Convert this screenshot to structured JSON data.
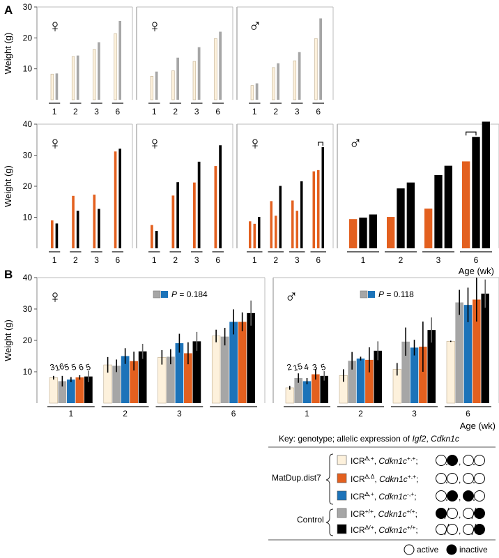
{
  "panel_labels": {
    "a": "A",
    "b": "B"
  },
  "colors": {
    "cream": "#fdf1dc",
    "grey": "#a6a6a6",
    "orange": "#e3601f",
    "blue": "#1c73b9",
    "black": "#000000"
  },
  "chart_data": [
    {
      "id": "a1",
      "type": "bar",
      "symbol": "♀",
      "ylabel": "Weight (g)",
      "ylim": [
        0,
        30
      ],
      "yticks": [
        10,
        20,
        30
      ],
      "categories": [
        "1",
        "2",
        "3",
        "6"
      ],
      "series": [
        {
          "color": "cream",
          "values": [
            8.3,
            14.0,
            16.3,
            21.4
          ]
        },
        {
          "color": "grey",
          "values": [
            8.5,
            14.3,
            18.6,
            25.5
          ]
        }
      ]
    },
    {
      "id": "a2",
      "type": "bar",
      "symbol": "♀",
      "ylim": [
        0,
        30
      ],
      "categories": [
        "1",
        "2",
        "3",
        "6"
      ],
      "series": [
        {
          "color": "cream",
          "values": [
            7.6,
            9.4,
            12.4,
            19.8
          ]
        },
        {
          "color": "grey",
          "values": [
            9.1,
            13.6,
            17.0,
            22.0
          ]
        }
      ]
    },
    {
      "id": "a3",
      "type": "bar",
      "symbol": "♂",
      "ylim": [
        0,
        30
      ],
      "categories": [
        "1",
        "2",
        "3",
        "6"
      ],
      "series": [
        {
          "color": "cream",
          "values": [
            4.6,
            10.4,
            12.6,
            19.8
          ]
        },
        {
          "color": "grey",
          "values": [
            5.3,
            11.8,
            15.4,
            26.3
          ]
        }
      ]
    },
    {
      "id": "a4",
      "type": "bar",
      "symbol": "♀",
      "ylabel": "Weight (g)",
      "ylim": [
        0,
        40
      ],
      "yticks": [
        10,
        20,
        30,
        40
      ],
      "categories": [
        "1",
        "2",
        "3",
        "6"
      ],
      "series": [
        {
          "color": "orange",
          "values": [
            9.0,
            16.9,
            17.3,
            31.2
          ]
        },
        {
          "color": "black",
          "values": [
            8.0,
            12.1,
            12.7,
            32.1
          ]
        }
      ]
    },
    {
      "id": "a5",
      "type": "bar",
      "symbol": "♀",
      "ylim": [
        0,
        40
      ],
      "categories": [
        "1",
        "2",
        "3",
        "6"
      ],
      "series": [
        {
          "color": "orange",
          "values": [
            7.5,
            17.0,
            21.2,
            26.5
          ]
        },
        {
          "color": "black",
          "values": [
            5.6,
            21.3,
            27.9,
            33.2
          ]
        }
      ]
    },
    {
      "id": "a6",
      "type": "bar",
      "symbol": "♀",
      "ylim": [
        0,
        40
      ],
      "categories": [
        "1",
        "2",
        "3",
        "6"
      ],
      "series": [
        {
          "color": "orange",
          "values": [
            8.7,
            15.2,
            15.4,
            24.8
          ]
        },
        {
          "color": "orange",
          "values": [
            7.9,
            10.5,
            12.1,
            25.2
          ]
        },
        {
          "color": "black",
          "values": [
            10.1,
            20.1,
            21.6,
            32.6
          ]
        }
      ],
      "bracket": {
        "category": "6",
        "from_series": 1,
        "to_series": 2
      }
    },
    {
      "id": "a7",
      "type": "bar",
      "symbol": "♂",
      "ylim": [
        0,
        40
      ],
      "xlabel": "Age (wk)",
      "categories": [
        "1",
        "2",
        "3",
        "6"
      ],
      "series": [
        {
          "color": "orange",
          "values": [
            9.4,
            10.1,
            12.8,
            28.0
          ]
        },
        {
          "color": "black",
          "values": [
            9.9,
            19.3,
            23.6,
            35.9
          ]
        },
        {
          "color": "black",
          "values": [
            10.9,
            21.2,
            26.6,
            40.8
          ]
        }
      ],
      "bracket": {
        "category": "6",
        "from_series": 0,
        "to_series": 1
      }
    },
    {
      "id": "b1",
      "type": "bar",
      "symbol": "♀",
      "ylabel": "Weight (g)",
      "ylim": [
        0,
        40
      ],
      "yticks": [
        10,
        20,
        30,
        40
      ],
      "categories": [
        "1",
        "2",
        "3",
        "6"
      ],
      "p_label": "P",
      "p_value": "= 0.184",
      "n_labels": [
        "3",
        "16",
        "5",
        "5",
        "6",
        "5"
      ],
      "series": [
        {
          "color": "cream",
          "values": [
            8.1,
            12.2,
            14.6,
            21.4
          ],
          "err": [
            0.6,
            2.5,
            2.3,
            2.0
          ]
        },
        {
          "color": "grey",
          "values": [
            7.0,
            11.9,
            14.8,
            21.2
          ],
          "err": [
            1.7,
            2.0,
            2.4,
            2.8
          ]
        },
        {
          "color": "blue",
          "values": [
            7.5,
            15.0,
            19.1,
            25.9
          ],
          "err": [
            0.8,
            2.5,
            3.0,
            4.0
          ]
        },
        {
          "color": "orange",
          "values": [
            8.2,
            13.4,
            15.9,
            25.9
          ],
          "err": [
            0.7,
            3.0,
            3.5,
            3.0
          ]
        },
        {
          "color": "black",
          "values": [
            8.5,
            16.5,
            19.7,
            28.7
          ],
          "err": [
            1.8,
            2.4,
            3.0,
            4.0
          ]
        }
      ]
    },
    {
      "id": "b2",
      "type": "bar",
      "symbol": "♂",
      "ylim": [
        0,
        40
      ],
      "xlabel": "Age (wk)",
      "categories": [
        "1",
        "2",
        "3",
        "6"
      ],
      "p_label": "P",
      "p_value": "= 0.118",
      "n_labels": [
        "2",
        "15",
        "4",
        "3",
        "5"
      ],
      "series": [
        {
          "color": "cream",
          "values": [
            4.9,
            8.8,
            10.8,
            19.7
          ],
          "err": [
            0.6,
            2.0,
            2.0,
            0.2
          ]
        },
        {
          "color": "grey",
          "values": [
            8.0,
            13.5,
            19.6,
            32.1
          ],
          "err": [
            1.5,
            2.8,
            4.5,
            4.0
          ]
        },
        {
          "color": "blue",
          "values": [
            7.0,
            14.2,
            17.7,
            31.3
          ],
          "err": [
            1.0,
            0.6,
            2.5,
            5.5
          ]
        },
        {
          "color": "orange",
          "values": [
            9.2,
            13.8,
            18.0,
            33.0
          ],
          "err": [
            1.7,
            4.0,
            8.0,
            7.0
          ]
        },
        {
          "color": "black",
          "values": [
            8.7,
            16.7,
            23.3,
            34.9
          ],
          "err": [
            1.5,
            3.0,
            4.0,
            4.5
          ]
        }
      ]
    }
  ],
  "key": {
    "title_prefix": "Key: genotype; allelic expression of ",
    "title_igf2": "Igf2",
    "title_sep": ", ",
    "title_cdkn": "Cdkn1c",
    "group1": "MatDup.dist7",
    "group2": "Control",
    "rows": [
      {
        "color": "cream",
        "icr": "ICR",
        "icr_sup": "Δ,+",
        "gene": "Cdkn1c",
        "gene_sup": "+,+",
        "sep": ";",
        "igf2_pair": [
          "open",
          "filled"
        ],
        "cdkn_pair": [
          "open",
          "open"
        ],
        "pair_style": "dot"
      },
      {
        "color": "orange",
        "icr": "ICR",
        "icr_sup": "Δ,Δ",
        "gene": "Cdkn1c",
        "gene_sup": "+,+",
        "sep": ";",
        "igf2_pair": [
          "open",
          "open"
        ],
        "cdkn_pair": [
          "open",
          "open"
        ],
        "pair_style": "dot"
      },
      {
        "color": "blue",
        "icr": "ICR",
        "icr_sup": "Δ,+",
        "gene": "Cdkn1c",
        "gene_sup": "-,+",
        "sep": ";",
        "igf2_pair": [
          "open",
          "filled"
        ],
        "cdkn_pair": [
          "filled",
          "open"
        ],
        "pair_style": "dot"
      },
      {
        "color": "grey",
        "icr": "ICR",
        "icr_sup": "+/+",
        "gene": "Cdkn1c",
        "gene_sup": "+/+",
        "sep": ";",
        "igf2_pair": [
          "filled",
          "open"
        ],
        "cdkn_pair": [
          "open",
          "filled"
        ],
        "pair_style": "slash"
      },
      {
        "color": "black",
        "icr": "ICR",
        "icr_sup": "Δ/+",
        "gene": "Cdkn1c",
        "gene_sup": "+/+",
        "sep": ";",
        "igf2_pair": [
          "open",
          "open"
        ],
        "cdkn_pair": [
          "open",
          "filled"
        ],
        "pair_style": "slash"
      }
    ],
    "comma": ",",
    "legend_active": "active",
    "legend_inactive": "inactive"
  }
}
